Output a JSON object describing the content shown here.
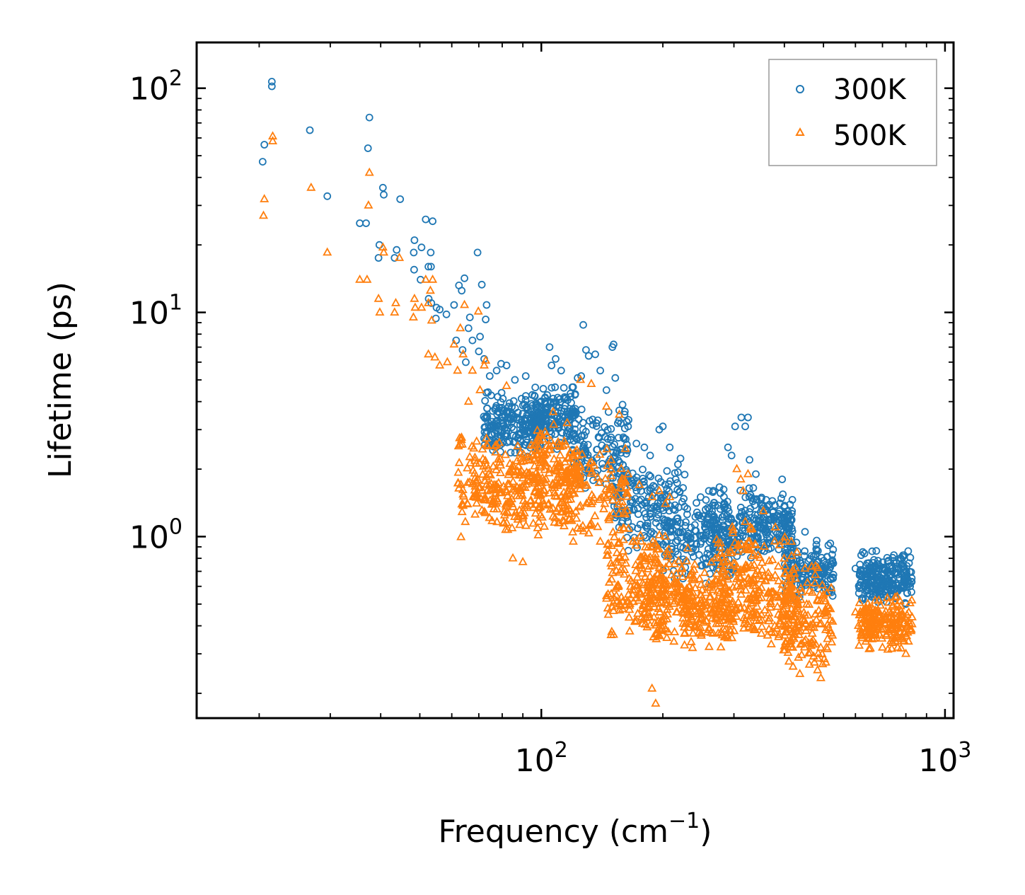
{
  "chart_data": {
    "type": "scatter",
    "xscale": "log",
    "yscale": "log",
    "xlabel": "Frequency (cm",
    "xlabel_sup": "−1",
    "xlabel_end": ")",
    "ylabel": "Lifetime (ps)",
    "xlim": [
      14,
      1050
    ],
    "ylim": [
      0.155,
      160
    ],
    "x_ticks": [
      {
        "base": "10",
        "exp": "2",
        "value": 100
      },
      {
        "base": "10",
        "exp": "3",
        "value": 1000
      }
    ],
    "y_ticks": [
      {
        "base": "10",
        "exp": "0",
        "value": 1
      },
      {
        "base": "10",
        "exp": "1",
        "value": 10
      },
      {
        "base": "10",
        "exp": "2",
        "value": 100
      }
    ],
    "legend_position": "top-right",
    "series": [
      {
        "name": "300K",
        "marker": "circle",
        "color": "#1f77b4",
        "points": [
          [
            20.6,
            56
          ],
          [
            20.4,
            47
          ],
          [
            21.5,
            102
          ],
          [
            21.5,
            107
          ],
          [
            26.7,
            65
          ],
          [
            29.5,
            33
          ],
          [
            37.5,
            74
          ],
          [
            37.2,
            54
          ],
          [
            35.5,
            25
          ],
          [
            36.8,
            25
          ],
          [
            39.7,
            20
          ],
          [
            39.5,
            17.5
          ],
          [
            40.5,
            36
          ],
          [
            40.7,
            33.5
          ],
          [
            44.7,
            32
          ],
          [
            43.8,
            19
          ],
          [
            43.3,
            17.5
          ],
          [
            48.5,
            21
          ],
          [
            48.3,
            18.5
          ],
          [
            50.5,
            19.5
          ],
          [
            51.7,
            26
          ],
          [
            53.8,
            25.5
          ],
          [
            53.2,
            18.5
          ],
          [
            52.5,
            16
          ],
          [
            53.3,
            16
          ],
          [
            48.4,
            15.5
          ],
          [
            50.2,
            14
          ],
          [
            52.6,
            11.5
          ],
          [
            53.4,
            11
          ],
          [
            55,
            10.5
          ],
          [
            56,
            10.3
          ],
          [
            54.8,
            9.4
          ],
          [
            58.2,
            9.8
          ],
          [
            60.8,
            10.8
          ],
          [
            62.5,
            13.2
          ],
          [
            63.5,
            12.5
          ],
          [
            64.5,
            14.2
          ],
          [
            66.5,
            9.5
          ],
          [
            69.5,
            18.5
          ],
          [
            71.2,
            13.3
          ],
          [
            73.2,
            10.8
          ],
          [
            66,
            8.5
          ],
          [
            67.5,
            7.5
          ],
          [
            70.5,
            7.8
          ],
          [
            72.8,
            9.3
          ],
          [
            61.5,
            7.5
          ],
          [
            63.8,
            6.8
          ],
          [
            65,
            6
          ],
          [
            70,
            6.7
          ],
          [
            72.2,
            6.2
          ],
          [
            74.5,
            5.2
          ],
          [
            77.5,
            5.5
          ],
          [
            79.5,
            5.9
          ],
          [
            82,
            5.8
          ],
          [
            86,
            5
          ],
          [
            91.5,
            5.2
          ],
          [
            104.8,
            7
          ],
          [
            106,
            5.8
          ],
          [
            108.5,
            6.2
          ],
          [
            112,
            5.5
          ],
          [
            123,
            5.1
          ],
          [
            125.5,
            5.2
          ],
          [
            127,
            8.8
          ],
          [
            129,
            6.8
          ],
          [
            131,
            6.4
          ],
          [
            136,
            6.5
          ],
          [
            140,
            5.5
          ],
          [
            145,
            4.5
          ],
          [
            150,
            7
          ],
          [
            151,
            7.2
          ],
          [
            152.5,
            5.1
          ],
          [
            164,
            3.1
          ],
          [
            172,
            2.6
          ],
          [
            180,
            2.5
          ],
          [
            186,
            2.3
          ],
          [
            196,
            3
          ],
          [
            200,
            3.1
          ],
          [
            208,
            2.5
          ],
          [
            218,
            2.1
          ],
          [
            248,
            1.5
          ],
          [
            260,
            1.6
          ],
          [
            290,
            2.5
          ],
          [
            296,
            2.3
          ],
          [
            302,
            3.1
          ],
          [
            313,
            3.4
          ],
          [
            320,
            3.1
          ],
          [
            325,
            3.4
          ],
          [
            328,
            2.2
          ],
          [
            340,
            1.9
          ],
          [
            395,
            1.8
          ],
          [
            418,
            1.3
          ],
          [
            450,
            1.05
          ],
          [
            480,
            0.92
          ],
          [
            520,
            0.65
          ],
          [
            600,
            0.72
          ],
          [
            640,
            0.7
          ],
          [
            660,
            0.86
          ],
          [
            700,
            0.65
          ],
          [
            740,
            0.72
          ],
          [
            780,
            0.6
          ],
          [
            800,
            0.5
          ]
        ],
        "clusters": [
          {
            "x": [
              72,
              100
            ],
            "y": [
              2.2,
              4.6
            ],
            "n": 230
          },
          {
            "x": [
              95,
              122
            ],
            "y": [
              2.3,
              5.0
            ],
            "n": 170
          },
          {
            "x": [
              120,
              165
            ],
            "y": [
              1.5,
              4.0
            ],
            "n": 130
          },
          {
            "x": [
              150,
              230
            ],
            "y": [
              0.85,
              2.3
            ],
            "n": 170
          },
          {
            "x": [
              200,
              300
            ],
            "y": [
              0.6,
              1.5
            ],
            "n": 160
          },
          {
            "x": [
              255,
              345
            ],
            "y": [
              0.75,
              1.8
            ],
            "n": 140
          },
          {
            "x": [
              340,
              420
            ],
            "y": [
              0.8,
              1.6
            ],
            "n": 140
          },
          {
            "x": [
              400,
              530
            ],
            "y": [
              0.5,
              1.0
            ],
            "n": 160
          },
          {
            "x": [
              610,
              830
            ],
            "y": [
              0.5,
              0.88
            ],
            "n": 230
          }
        ]
      },
      {
        "name": "500K",
        "marker": "triangle",
        "color": "#ff7f0e",
        "points": [
          [
            20.6,
            32
          ],
          [
            20.5,
            27
          ],
          [
            21.6,
            58
          ],
          [
            21.6,
            61
          ],
          [
            26.9,
            36
          ],
          [
            29.5,
            18.5
          ],
          [
            35.5,
            14
          ],
          [
            37,
            14
          ],
          [
            37.5,
            42
          ],
          [
            37.3,
            30
          ],
          [
            39.5,
            11.5
          ],
          [
            39.8,
            10
          ],
          [
            40.5,
            19.5
          ],
          [
            40.7,
            18.5
          ],
          [
            44.5,
            17.5
          ],
          [
            43.6,
            11
          ],
          [
            43.3,
            10
          ],
          [
            48.5,
            11.5
          ],
          [
            48.7,
            10.5
          ],
          [
            50.5,
            10.5
          ],
          [
            51.7,
            14
          ],
          [
            53.8,
            14
          ],
          [
            53.1,
            12.5
          ],
          [
            52.5,
            11
          ],
          [
            53.5,
            9.2
          ],
          [
            48.2,
            9.5
          ],
          [
            52.5,
            6.5
          ],
          [
            54.5,
            6.3
          ],
          [
            56,
            5.8
          ],
          [
            58.5,
            6
          ],
          [
            60.8,
            7.2
          ],
          [
            63,
            8.5
          ],
          [
            64.5,
            10.8
          ],
          [
            69.8,
            10.1
          ],
          [
            72.2,
            5.8
          ],
          [
            67.5,
            5.5
          ],
          [
            70.5,
            4.5
          ],
          [
            64,
            6.5
          ],
          [
            66,
            4
          ],
          [
            62,
            5.5
          ],
          [
            72.8,
            6.1
          ],
          [
            82,
            4.7
          ],
          [
            107,
            3.6
          ],
          [
            125,
            5
          ],
          [
            133,
            4.8
          ],
          [
            145,
            3.8
          ],
          [
            156,
            3.5
          ],
          [
            164,
            1.9
          ],
          [
            175,
            1.7
          ],
          [
            188,
            1.5
          ],
          [
            196,
            1.6
          ],
          [
            203,
            1.4
          ],
          [
            208,
            1.5
          ],
          [
            192,
            0.18
          ],
          [
            188,
            0.21
          ],
          [
            240,
            0.75
          ],
          [
            270,
            0.8
          ],
          [
            305,
            2
          ],
          [
            312,
            1.8
          ],
          [
            316,
            1.6
          ],
          [
            325,
            1.9
          ],
          [
            355,
            1.3
          ],
          [
            380,
            1.1
          ],
          [
            400,
            0.95
          ],
          [
            430,
            0.85
          ],
          [
            450,
            0.72
          ],
          [
            500,
            0.55
          ],
          [
            520,
            0.38
          ],
          [
            600,
            0.46
          ],
          [
            620,
            0.36
          ],
          [
            660,
            0.48
          ],
          [
            700,
            0.32
          ],
          [
            740,
            0.35
          ],
          [
            800,
            0.3
          ],
          [
            140,
            0.95
          ],
          [
            120,
            0.95
          ],
          [
            85,
            0.8
          ],
          [
            90,
            0.77
          ]
        ],
        "clusters": [
          {
            "x": [
              62,
              100
            ],
            "y": [
              0.95,
              3.0
            ],
            "n": 250
          },
          {
            "x": [
              95,
              125
            ],
            "y": [
              1.0,
              3.3
            ],
            "n": 160
          },
          {
            "x": [
              110,
              165
            ],
            "y": [
              0.95,
              2.6
            ],
            "n": 120
          },
          {
            "x": [
              145,
              205
            ],
            "y": [
              0.32,
              1.2
            ],
            "n": 200
          },
          {
            "x": [
              180,
              240
            ],
            "y": [
              0.32,
              0.95
            ],
            "n": 120
          },
          {
            "x": [
              220,
              300
            ],
            "y": [
              0.3,
              0.75
            ],
            "n": 140
          },
          {
            "x": [
              260,
              340
            ],
            "y": [
              0.3,
              1.3
            ],
            "n": 140
          },
          {
            "x": [
              320,
              420
            ],
            "y": [
              0.3,
              1.0
            ],
            "n": 140
          },
          {
            "x": [
              400,
              530
            ],
            "y": [
              0.22,
              0.8
            ],
            "n": 160
          },
          {
            "x": [
              610,
              830
            ],
            "y": [
              0.3,
              0.55
            ],
            "n": 200
          }
        ]
      }
    ]
  }
}
